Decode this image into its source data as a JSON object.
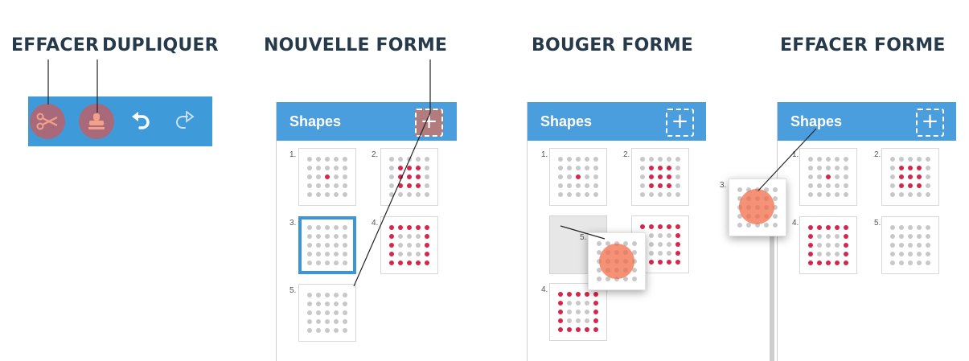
{
  "titles": {
    "effacer": "EFFACER",
    "dupliquer": "DUPLIQUER",
    "nouvelle_forme": "NOUVELLE FORME",
    "bouger_forme": "BOUGER FORME",
    "effacer_forme": "EFFACER FORME"
  },
  "toolbar": {
    "icons": [
      "scissors-icon",
      "stamp-icon",
      "undo-icon",
      "redo-icon"
    ]
  },
  "panel": {
    "title": "Shapes",
    "add_label": "+"
  },
  "numbers": {
    "n1": "1.",
    "n2": "2.",
    "n3": "3.",
    "n4": "4.",
    "n5": "5."
  },
  "patterns": {
    "single": [
      12
    ],
    "square3": [
      6,
      7,
      8,
      11,
      12,
      13,
      16,
      17,
      18
    ],
    "ring5": [
      0,
      1,
      2,
      3,
      4,
      5,
      9,
      10,
      14,
      15,
      19,
      20,
      21,
      22,
      23,
      24
    ],
    "empty": []
  },
  "colors": {
    "accent": "#4a9ede",
    "active_dot": "#d7264b",
    "inactive_dot": "#c8c8c8",
    "touch": "#f06c48",
    "title_text": "#263a4c"
  }
}
